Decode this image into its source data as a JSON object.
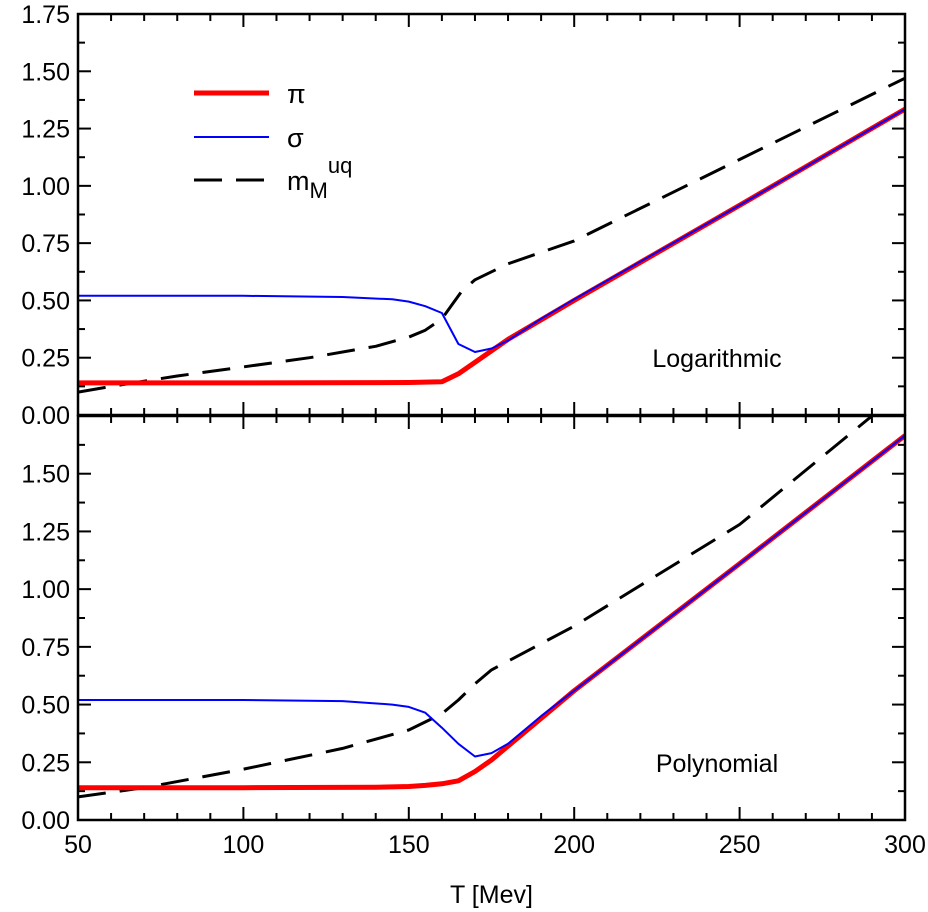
{
  "chart_data": [
    {
      "type": "line",
      "panel": "top",
      "annotation": "Logarithmic",
      "xlim": [
        50,
        300
      ],
      "ylim": [
        0,
        1.75
      ],
      "yticks": [
        "0.00",
        "0.25",
        "0.50",
        "0.75",
        "1.00",
        "1.25",
        "1.50",
        "1.75"
      ],
      "legend": {
        "placement": "top-left",
        "entries": [
          "π",
          "σ",
          "m_M^uq"
        ]
      },
      "series": [
        {
          "name": "π",
          "color": "#ff0000",
          "style": "solid-thick",
          "x": [
            50,
            100,
            150,
            160,
            165,
            170,
            175,
            180,
            200,
            250,
            300
          ],
          "y": [
            0.14,
            0.14,
            0.142,
            0.145,
            0.18,
            0.23,
            0.28,
            0.33,
            0.5,
            0.915,
            1.335
          ]
        },
        {
          "name": "σ",
          "color": "#0000ff",
          "style": "solid-thin",
          "x": [
            50,
            100,
            130,
            145,
            150,
            155,
            160,
            165,
            170,
            175,
            180,
            190,
            200,
            250,
            300
          ],
          "y": [
            0.52,
            0.52,
            0.515,
            0.505,
            0.495,
            0.475,
            0.445,
            0.31,
            0.275,
            0.29,
            0.325,
            0.42,
            0.505,
            0.915,
            1.335
          ]
        },
        {
          "name": "m_M^uq",
          "color": "#000000",
          "style": "dashed",
          "x": [
            50,
            60,
            80,
            100,
            120,
            140,
            150,
            155,
            160,
            163,
            166,
            170,
            180,
            200,
            250,
            300
          ],
          "y": [
            0.1,
            0.125,
            0.17,
            0.21,
            0.25,
            0.3,
            0.34,
            0.37,
            0.42,
            0.48,
            0.54,
            0.59,
            0.66,
            0.76,
            1.115,
            1.47
          ]
        }
      ]
    },
    {
      "type": "line",
      "panel": "bottom",
      "annotation": "Polynomial",
      "xlim": [
        50,
        300
      ],
      "ylim": [
        0,
        1.75
      ],
      "xlabel": "T [Mev]",
      "xticks": [
        "50",
        "100",
        "150",
        "200",
        "250",
        "300"
      ],
      "yticks": [
        "0.00",
        "0.25",
        "0.50",
        "0.75",
        "1.00",
        "1.25",
        "1.50"
      ],
      "series": [
        {
          "name": "π",
          "color": "#ff0000",
          "style": "solid-thick",
          "x": [
            50,
            100,
            140,
            150,
            155,
            160,
            165,
            170,
            175,
            180,
            200,
            250,
            300
          ],
          "y": [
            0.14,
            0.14,
            0.142,
            0.145,
            0.15,
            0.157,
            0.17,
            0.21,
            0.26,
            0.32,
            0.56,
            1.11,
            1.665
          ]
        },
        {
          "name": "σ",
          "color": "#0000ff",
          "style": "solid-thin",
          "x": [
            50,
            100,
            130,
            145,
            150,
            155,
            160,
            165,
            170,
            175,
            180,
            190,
            200,
            250,
            300
          ],
          "y": [
            0.52,
            0.52,
            0.515,
            0.5,
            0.49,
            0.465,
            0.4,
            0.33,
            0.275,
            0.29,
            0.33,
            0.45,
            0.56,
            1.11,
            1.665
          ]
        },
        {
          "name": "m_M^uq",
          "color": "#000000",
          "style": "dashed",
          "x": [
            50,
            70,
            100,
            130,
            150,
            160,
            165,
            170,
            175,
            200,
            250,
            290
          ],
          "y": [
            0.1,
            0.14,
            0.22,
            0.31,
            0.39,
            0.46,
            0.52,
            0.59,
            0.65,
            0.84,
            1.28,
            1.75
          ]
        }
      ]
    }
  ]
}
